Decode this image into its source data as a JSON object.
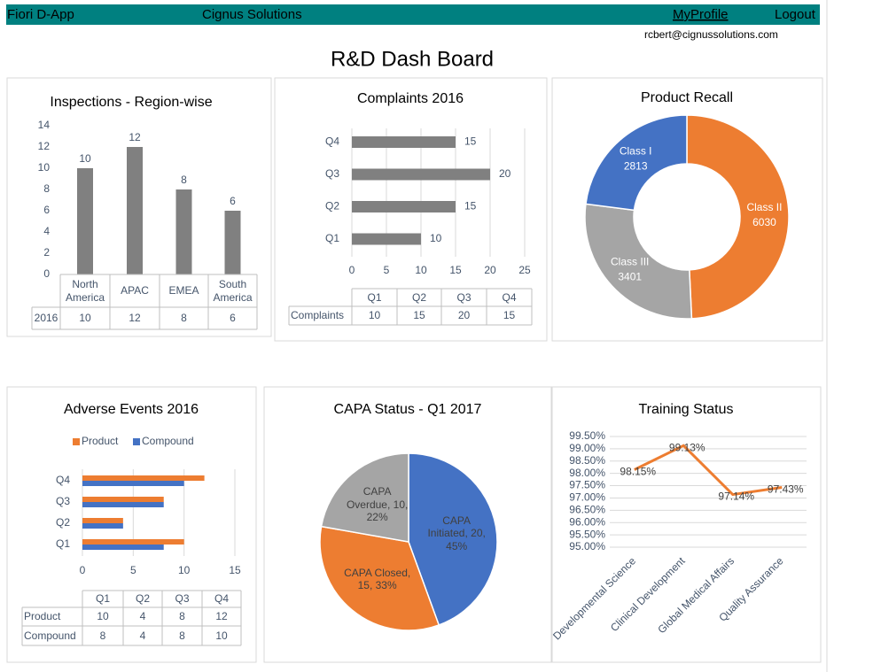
{
  "header": {
    "app": "Fiori D-App",
    "company": "Cignus Solutions",
    "profile": "MyProfile",
    "logout": "Logout",
    "email": "rcbert@cignussolutions.com"
  },
  "title": "R&D Dash Board",
  "chart_data": [
    {
      "type": "bar",
      "title": "Inspections - Region-wise",
      "orientation": "vertical",
      "categories": [
        "North America",
        "APAC",
        "EMEA",
        "South America"
      ],
      "series": [
        {
          "name": "2016",
          "color": "#808080",
          "values": [
            10,
            12,
            8,
            6
          ]
        }
      ],
      "ylim": [
        0,
        14
      ],
      "yticks": [
        0,
        2,
        4,
        6,
        8,
        10,
        12,
        14
      ],
      "grid": false
    },
    {
      "type": "bar",
      "title": "Complaints 2016",
      "orientation": "horizontal",
      "categories": [
        "Q1",
        "Q2",
        "Q3",
        "Q4"
      ],
      "series": [
        {
          "name": "Complaints",
          "color": "#808080",
          "values": [
            10,
            15,
            20,
            15
          ]
        }
      ],
      "xlim": [
        0,
        25
      ],
      "xticks": [
        0,
        5,
        10,
        15,
        20,
        25
      ],
      "grid": true
    },
    {
      "type": "donut",
      "title": "Product Recall",
      "categories": [
        "Class II",
        "Class III",
        "Class I"
      ],
      "values": [
        6030,
        3401,
        2813
      ],
      "colors": [
        "#ed7d31",
        "#a5a5a5",
        "#4472c4"
      ]
    },
    {
      "type": "bar",
      "title": "Adverse Events 2016",
      "orientation": "horizontal",
      "legend": "top",
      "categories": [
        "Q1",
        "Q2",
        "Q3",
        "Q4"
      ],
      "series": [
        {
          "name": "Product",
          "color": "#ed7d31",
          "values": [
            10,
            4,
            8,
            12
          ]
        },
        {
          "name": "Compound",
          "color": "#4472c4",
          "values": [
            8,
            4,
            8,
            10
          ]
        }
      ],
      "xlim": [
        0,
        15
      ],
      "xticks": [
        0,
        5,
        10,
        15
      ],
      "grid": true
    },
    {
      "type": "pie",
      "title": "CAPA Status - Q1 2017",
      "values": [
        20,
        15,
        10
      ],
      "value_labels": [
        "CAPA Initiated, 20, 45%",
        "CAPA Closed, 15, 33%",
        "CAPA Overdue, 10, 22%"
      ],
      "colors": [
        "#4472c4",
        "#ed7d31",
        "#a5a5a5"
      ]
    },
    {
      "type": "line",
      "title": "Training Status",
      "categories": [
        "Developmental Science",
        "Clinical Development",
        "Global Medical Affairs",
        "Quality Assurance"
      ],
      "values": [
        98.15,
        99.13,
        97.14,
        97.43
      ],
      "value_labels": [
        "98.15%",
        "99.13%",
        "97.14%",
        "97.43%"
      ],
      "color": "#ed7d31",
      "ylim": [
        95,
        99.5
      ],
      "yticks": [
        {
          "value": 95,
          "label": "95.00%"
        },
        {
          "value": 95.5,
          "label": "95.50%"
        },
        {
          "value": 96,
          "label": "96.00%"
        },
        {
          "value": 96.5,
          "label": "96.50%"
        },
        {
          "value": 97,
          "label": "97.00%"
        },
        {
          "value": 97.5,
          "label": "97.50%"
        },
        {
          "value": 98,
          "label": "98.00%"
        },
        {
          "value": 98.5,
          "label": "98.50%"
        },
        {
          "value": 99,
          "label": "99.00%"
        },
        {
          "value": 99.5,
          "label": "99.50%"
        }
      ],
      "grid": true
    }
  ]
}
